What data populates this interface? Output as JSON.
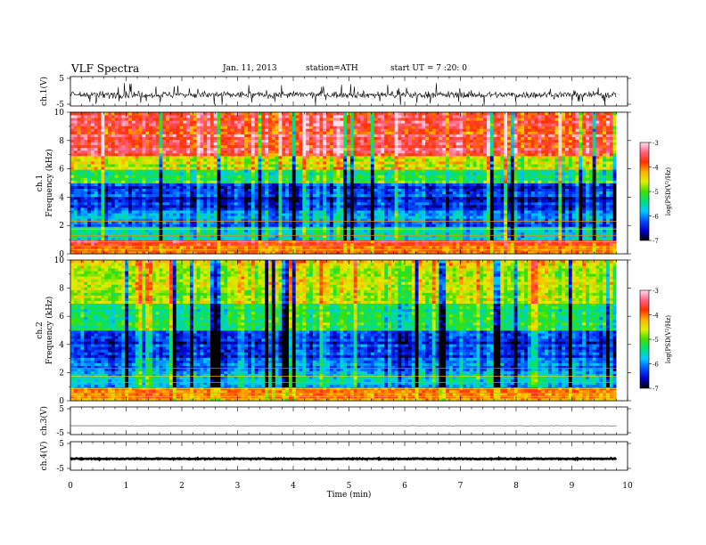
{
  "header": {
    "title": "VLF  Spectra",
    "date": "Jan. 11, 2013",
    "station": "station=ATH",
    "start": "start  UT  =   7  :20: 0"
  },
  "x_axis": {
    "label": "Time  (min)",
    "ticks": [
      "0",
      "1",
      "2",
      "3",
      "4",
      "5",
      "6",
      "7",
      "8",
      "9",
      "10"
    ],
    "range": [
      0,
      10
    ],
    "data_end": 9.8
  },
  "panels": {
    "ch1_waveform": {
      "ylabel": "ch.1(V)",
      "ticks": [
        "5",
        "-5"
      ],
      "ylim": [
        -5,
        5
      ]
    },
    "ch1_spectrogram": {
      "ylabel_top": "ch.1",
      "ylabel": "Frequency  (kHz)",
      "ticks": [
        "0",
        "2",
        "4",
        "6",
        "8",
        "10"
      ],
      "ylim": [
        0,
        10
      ]
    },
    "ch2_spectrogram": {
      "ylabel_top": "ch.2",
      "ylabel": "Frequency  (kHz)",
      "ticks": [
        "0",
        "2",
        "4",
        "6",
        "8",
        "10"
      ],
      "ylim": [
        0,
        10
      ]
    },
    "ch3_waveform": {
      "ylabel": "ch.3(V)",
      "ticks": [
        "5",
        "-5"
      ],
      "ylim": [
        -5,
        5
      ]
    },
    "ch4_waveform": {
      "ylabel": "ch.4(V)",
      "ticks": [
        "5",
        "-5"
      ],
      "ylim": [
        -5,
        5
      ]
    }
  },
  "colorbar": {
    "label": "log(PSD(V²/Hz)",
    "ticks": [
      "-3",
      "-4",
      "-5",
      "-6",
      "-7"
    ],
    "range": [
      -7,
      -3
    ],
    "colors": [
      "#000000",
      "#0000c8",
      "#0050ff",
      "#00c8ff",
      "#00e07a",
      "#40e000",
      "#e0f000",
      "#ffb000",
      "#ff3000",
      "#ff6080",
      "#ffe0e8"
    ]
  },
  "chart_data": [
    {
      "type": "line",
      "name": "ch.1(V)",
      "x_unit": "min",
      "y_unit": "V",
      "description_values": {
        "baseline": -1.2,
        "noise_amplitude": 2.0,
        "max_spike": 4.0,
        "min_spike": -4.0
      }
    },
    {
      "type": "heatmap",
      "name": "ch.1",
      "x_unit": "min",
      "y_unit": "kHz",
      "bands_logpsd": [
        {
          "freq": [
            0,
            0.6
          ],
          "value": -4.0
        },
        {
          "freq": [
            0.6,
            1.0
          ],
          "value": -3.8
        },
        {
          "freq": [
            1.0,
            2.0
          ],
          "value": -5.6
        },
        {
          "freq": [
            2.0,
            3.0
          ],
          "value": -6.0
        },
        {
          "freq": [
            3.0,
            5.0
          ],
          "value": -6.3
        },
        {
          "freq": [
            5.0,
            6.0
          ],
          "value": -5.3
        },
        {
          "freq": [
            6.0,
            7.0
          ],
          "value": -4.6
        },
        {
          "freq": [
            7.0,
            10.0
          ],
          "value": -3.6
        }
      ]
    },
    {
      "type": "heatmap",
      "name": "ch.2",
      "x_unit": "min",
      "y_unit": "kHz",
      "bands_logpsd": [
        {
          "freq": [
            0,
            0.6
          ],
          "value": -4.1
        },
        {
          "freq": [
            0.6,
            1.0
          ],
          "value": -4.0
        },
        {
          "freq": [
            1.0,
            2.0
          ],
          "value": -5.6
        },
        {
          "freq": [
            2.0,
            3.0
          ],
          "value": -6.0
        },
        {
          "freq": [
            3.0,
            5.0
          ],
          "value": -6.3
        },
        {
          "freq": [
            5.0,
            7.0
          ],
          "value": -5.3
        },
        {
          "freq": [
            7.0,
            10.0
          ],
          "value": -4.6
        }
      ]
    },
    {
      "type": "line",
      "name": "ch.3(V)",
      "x_unit": "min",
      "y_unit": "V",
      "description_values": {
        "baseline": -1.8,
        "noise_amplitude": 0.1
      }
    },
    {
      "type": "line",
      "name": "ch.4(V)",
      "x_unit": "min",
      "y_unit": "V",
      "description_values": {
        "baseline": -1.0,
        "noise_amplitude": 0.3
      }
    }
  ]
}
